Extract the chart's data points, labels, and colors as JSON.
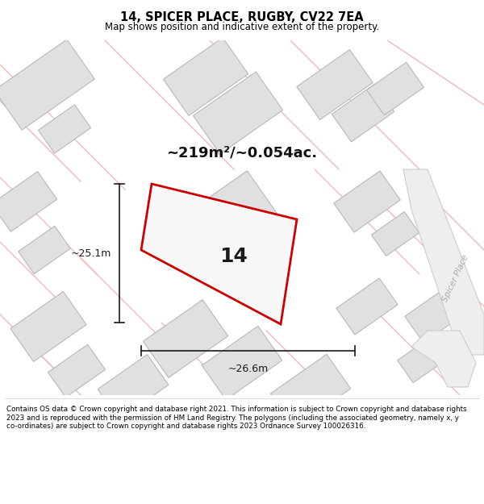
{
  "title": "14, SPICER PLACE, RUGBY, CV22 7EA",
  "subtitle": "Map shows position and indicative extent of the property.",
  "area_label": "~219m²/~0.054ac.",
  "plot_number": "14",
  "dim_height": "~25.1m",
  "dim_width": "~26.6m",
  "road_label": "Spicer Place",
  "footer": "Contains OS data © Crown copyright and database right 2021. This information is subject to Crown copyright and database rights 2023 and is reproduced with the permission of HM Land Registry. The polygons (including the associated geometry, namely x, y co-ordinates) are subject to Crown copyright and database rights 2023 Ordnance Survey 100026316.",
  "bg_color": "#ffffff",
  "map_bg": "#f7f7f7",
  "building_color": "#e0e0e0",
  "building_edge": "#b8b8b8",
  "plot_line_color": "#cc0000",
  "dim_line_color": "#1a1a1a",
  "pink_line_color": "#f0b8b8",
  "road_fill": "#e8e8e8",
  "road_edge": "#c8c8c8"
}
